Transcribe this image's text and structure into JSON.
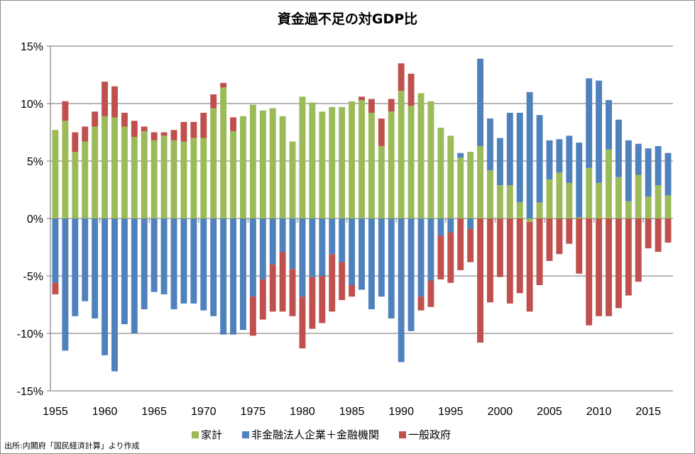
{
  "chart_data": {
    "type": "bar",
    "stacked": true,
    "title": "資金過不足の対GDP比",
    "source_note": "出所:内閣府「国民経済計算」より作成",
    "ylim": [
      -15,
      15
    ],
    "yticks": [
      15,
      10,
      5,
      0,
      -5,
      -10,
      -15
    ],
    "ytick_labels": [
      "15%",
      "10%",
      "5%",
      "0%",
      "-5%",
      "-10%",
      "-15%"
    ],
    "xtick_labels": [
      "1955",
      "1960",
      "1965",
      "1970",
      "1975",
      "1980",
      "1985",
      "1990",
      "1995",
      "2000",
      "2005",
      "2010",
      "2015"
    ],
    "grid": true,
    "legend_position": "bottom",
    "categories": [
      1955,
      1956,
      1957,
      1958,
      1959,
      1960,
      1961,
      1962,
      1963,
      1964,
      1965,
      1966,
      1967,
      1968,
      1969,
      1970,
      1971,
      1972,
      1973,
      1974,
      1975,
      1976,
      1977,
      1978,
      1979,
      1980,
      1981,
      1982,
      1983,
      1984,
      1985,
      1986,
      1987,
      1988,
      1989,
      1990,
      1991,
      1992,
      1993,
      1994,
      1995,
      1996,
      1997,
      1998,
      1999,
      2000,
      2001,
      2002,
      2003,
      2004,
      2005,
      2006,
      2007,
      2008,
      2009,
      2010,
      2011,
      2012,
      2013,
      2014,
      2015,
      2016,
      2017
    ],
    "series": [
      {
        "name": "家計",
        "color": "#9bbb59",
        "values": [
          7.7,
          8.5,
          5.8,
          6.7,
          8.0,
          8.9,
          8.8,
          8.0,
          7.1,
          7.6,
          6.8,
          7.2,
          6.8,
          6.7,
          7.0,
          7.0,
          9.6,
          11.4,
          7.6,
          8.9,
          9.9,
          9.4,
          9.6,
          8.9,
          6.7,
          10.6,
          10.1,
          9.3,
          9.7,
          9.7,
          10.2,
          10.3,
          9.2,
          6.3,
          9.3,
          11.1,
          9.8,
          10.9,
          10.2,
          7.9,
          7.2,
          5.3,
          5.8,
          6.3,
          4.2,
          2.9,
          2.9,
          1.4,
          -0.3,
          1.4,
          3.4,
          4.0,
          3.1,
          0.1,
          4.4,
          3.1,
          6.0,
          3.6,
          1.5,
          3.8,
          1.9,
          2.9,
          2.0
        ]
      },
      {
        "name": "非金融法人企業＋金融機関",
        "color": "#4f81bd",
        "values": [
          -5.6,
          -11.5,
          -8.5,
          -7.2,
          -8.7,
          -11.9,
          -13.3,
          -9.2,
          -10.0,
          -7.9,
          -6.4,
          -6.6,
          -7.9,
          -7.4,
          -7.4,
          -8.0,
          -8.5,
          -10.1,
          -10.1,
          -9.7,
          -6.8,
          -5.3,
          -4.0,
          -2.9,
          -4.4,
          -6.8,
          -5.1,
          -5.0,
          -3.1,
          -3.8,
          -5.8,
          -6.2,
          -7.9,
          -6.8,
          -8.7,
          -12.5,
          -9.8,
          -6.8,
          -5.4,
          -1.5,
          -1.2,
          0.4,
          -0.9,
          7.6,
          4.5,
          4.1,
          6.3,
          7.8,
          11.0,
          7.6,
          3.4,
          2.9,
          4.1,
          6.5,
          7.8,
          8.9,
          4.3,
          5.0,
          5.3,
          2.7,
          4.2,
          3.4,
          3.7
        ]
      },
      {
        "name": "一般政府",
        "color": "#c0504d",
        "values": [
          -1.0,
          1.7,
          1.7,
          1.3,
          1.3,
          3.0,
          2.7,
          1.2,
          1.4,
          0.4,
          0.7,
          0.3,
          0.9,
          1.7,
          1.4,
          2.2,
          1.2,
          0.4,
          1.2,
          0.0,
          -3.4,
          -3.5,
          -4.1,
          -5.2,
          -4.1,
          -4.5,
          -4.5,
          -4.1,
          -5.0,
          -3.3,
          -1.0,
          0.3,
          1.2,
          2.4,
          1.1,
          2.4,
          2.8,
          -1.2,
          -2.3,
          -3.8,
          -4.4,
          -4.5,
          -2.9,
          -10.8,
          -7.3,
          -5.1,
          -7.4,
          -6.5,
          -7.8,
          -5.8,
          -3.7,
          -3.1,
          -2.2,
          -4.8,
          -9.3,
          -8.5,
          -8.5,
          -7.8,
          -6.7,
          -5.5,
          -2.6,
          -2.9,
          -2.1
        ]
      }
    ]
  }
}
